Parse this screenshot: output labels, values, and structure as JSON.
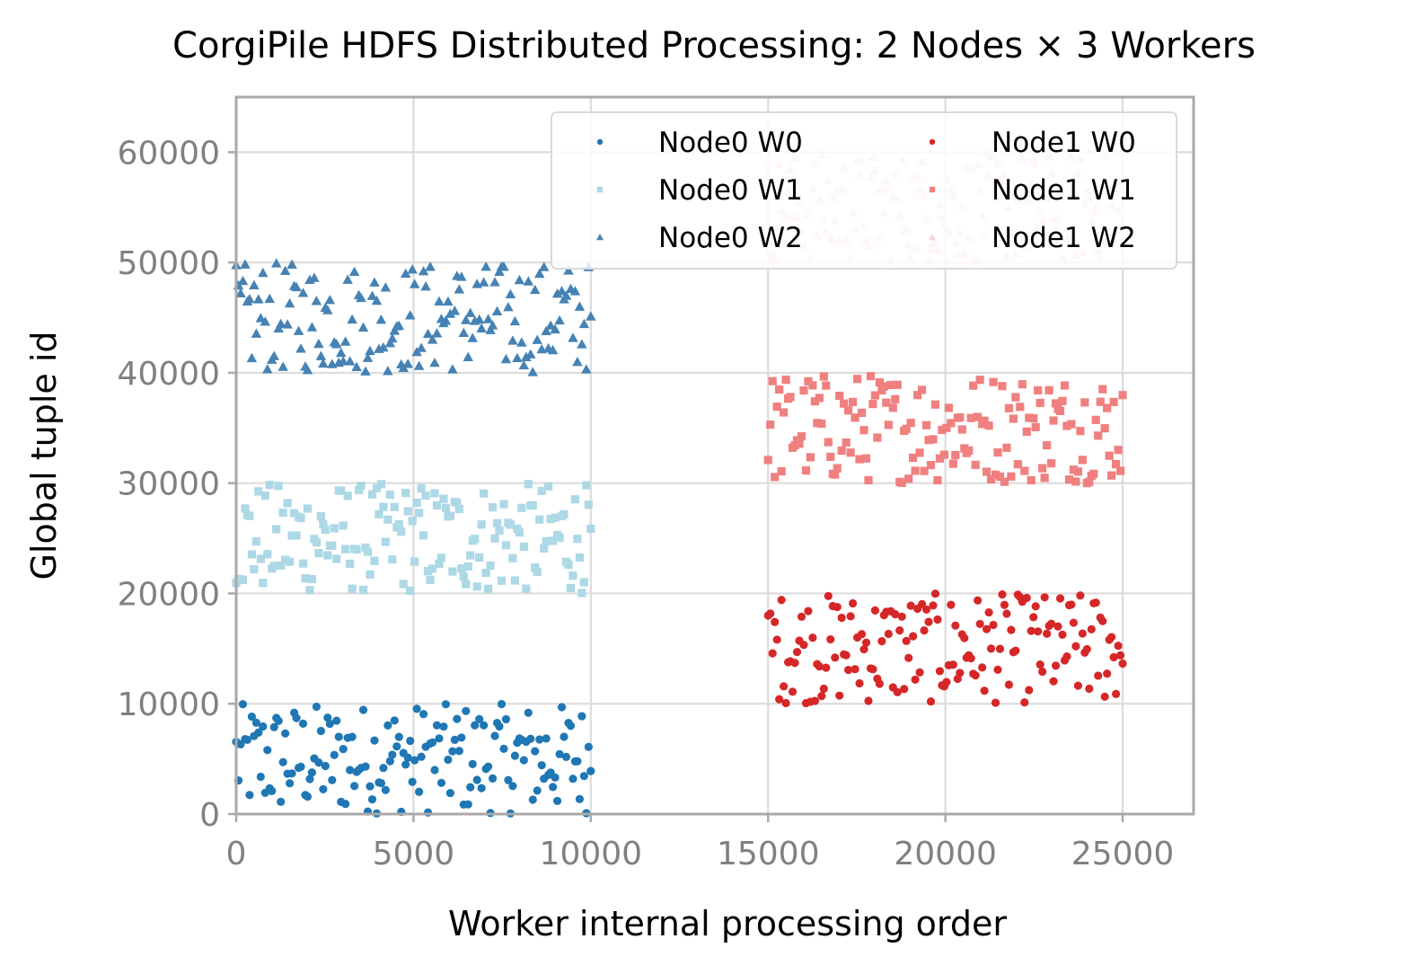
{
  "chart_data": {
    "type": "scatter",
    "title": "CorgiPile HDFS Distributed Processing: 2 Nodes × 3 Workers",
    "xlabel": "Worker internal processing order",
    "ylabel": "Global tuple id",
    "xlim": [
      0,
      27000
    ],
    "ylim": [
      0,
      65000
    ],
    "xticks": [
      0,
      5000,
      10000,
      15000,
      20000,
      25000
    ],
    "yticks": [
      0,
      10000,
      20000,
      30000,
      40000,
      50000,
      60000
    ],
    "xtick_labels": [
      "0",
      "5000",
      "10000",
      "15000",
      "20000",
      "25000"
    ],
    "ytick_labels": [
      "0",
      "10000",
      "20000",
      "30000",
      "40000",
      "50000",
      "60000"
    ],
    "grid": true,
    "legend_position": "top-right",
    "legend_columns": 2,
    "series": [
      {
        "name": "Node0 W0",
        "color": "#1f77b4",
        "marker": "circle",
        "x_range": [
          0,
          10000
        ],
        "y_range": [
          0,
          10000
        ],
        "points": 160
      },
      {
        "name": "Node0 W1",
        "color": "#add8e6",
        "marker": "square",
        "x_range": [
          0,
          10000
        ],
        "y_range": [
          20000,
          30000
        ],
        "points": 160
      },
      {
        "name": "Node0 W2",
        "color": "#4682b4",
        "marker": "triangle",
        "x_range": [
          0,
          10000
        ],
        "y_range": [
          40000,
          50000
        ],
        "points": 160
      },
      {
        "name": "Node1 W0",
        "color": "#d62728",
        "marker": "circle",
        "x_range": [
          15000,
          25000
        ],
        "y_range": [
          10000,
          20000
        ],
        "points": 160
      },
      {
        "name": "Node1 W1",
        "color": "#f08080",
        "marker": "square",
        "x_range": [
          15000,
          25000
        ],
        "y_range": [
          30000,
          40000
        ],
        "points": 160
      },
      {
        "name": "Node1 W2",
        "color": "#f9d0d8",
        "marker": "triangle",
        "x_range": [
          15000,
          25000
        ],
        "y_range": [
          50000,
          60000
        ],
        "points": 160
      }
    ]
  }
}
